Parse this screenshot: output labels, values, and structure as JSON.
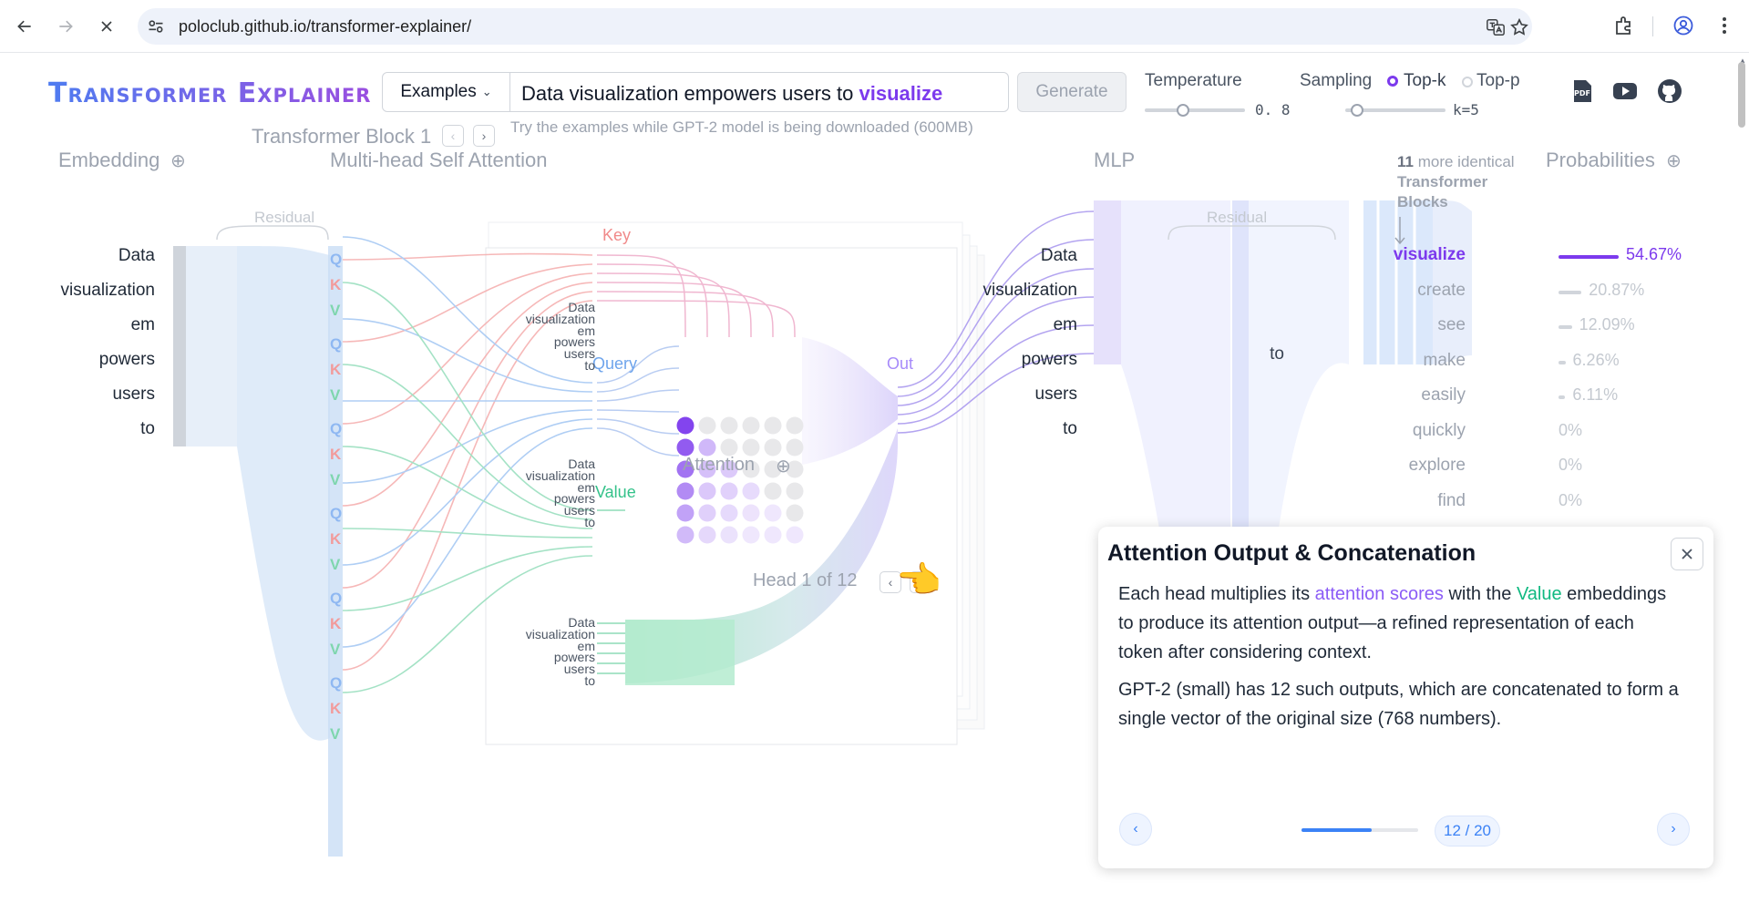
{
  "browser": {
    "url": "poloclub.github.io/transformer-explainer/"
  },
  "app": {
    "title": "Transformer Explainer",
    "examples_label": "Examples",
    "prompt_plain": "Data visualization empowers users to",
    "prompt_highlight": "visualize",
    "generate_label": "Generate",
    "hint": "Try the examples while GPT-2 model is being downloaded (600MB)",
    "temperature_label": "Temperature",
    "temperature_value": "0. 8",
    "temperature_fraction": 0.38,
    "sampling_label": "Sampling",
    "sampling_options": [
      "Top-k",
      "Top-p"
    ],
    "sampling_selected": "Top-k",
    "k_value": "k=5",
    "k_fraction": 0.05
  },
  "diagram": {
    "block_label": "Transformer Block 1",
    "embedding_title": "Embedding",
    "residual_label": "Residual",
    "attention_title": "Multi-head Self Attention",
    "mlp_title": "MLP",
    "more_blocks_count": "11",
    "more_blocks_text1": "more identical",
    "more_blocks_text2": "Transformer",
    "more_blocks_text3": "Blocks",
    "probabilities_title": "Probabilities",
    "tokens": [
      "Data",
      "visualization",
      "em",
      "powers",
      "users",
      "to"
    ],
    "mlp_last_token": "to",
    "qkv": [
      "Q",
      "K",
      "V"
    ],
    "key_label": "Key",
    "query_label": "Query",
    "value_label": "Value",
    "out_label": "Out",
    "attention_label": "Attention",
    "head_label": "Head 1 of 12",
    "probabilities": [
      {
        "token": "visualize",
        "pct": "54.67%",
        "value": 54.67
      },
      {
        "token": "create",
        "pct": "20.87%",
        "value": 20.87
      },
      {
        "token": "see",
        "pct": "12.09%",
        "value": 12.09
      },
      {
        "token": "make",
        "pct": "6.26%",
        "value": 6.26
      },
      {
        "token": "easily",
        "pct": "6.11%",
        "value": 6.11
      },
      {
        "token": "quickly",
        "pct": "0%",
        "value": 0
      },
      {
        "token": "explore",
        "pct": "0%",
        "value": 0
      },
      {
        "token": "find",
        "pct": "0%",
        "value": 0
      }
    ]
  },
  "panel": {
    "title": "Attention Output & Concatenation",
    "p1_a": "Each head multiplies its",
    "p1_att": "attention scores",
    "p1_b": "with the",
    "p1_val": "Value",
    "p1_c": "embeddings to produce its attention output—a refined representation of each token after considering context.",
    "p2": "GPT-2 (small) has 12 such outputs, which are concatenated to form a single vector of the original size (768 numbers).",
    "step": "12 / 20",
    "progress_fraction": 0.6
  },
  "colors": {
    "accent": "#7c3aed",
    "query": "#8fb8f2",
    "key": "#f29b9b",
    "value": "#7fd6ae",
    "link": "#3b82f6"
  }
}
